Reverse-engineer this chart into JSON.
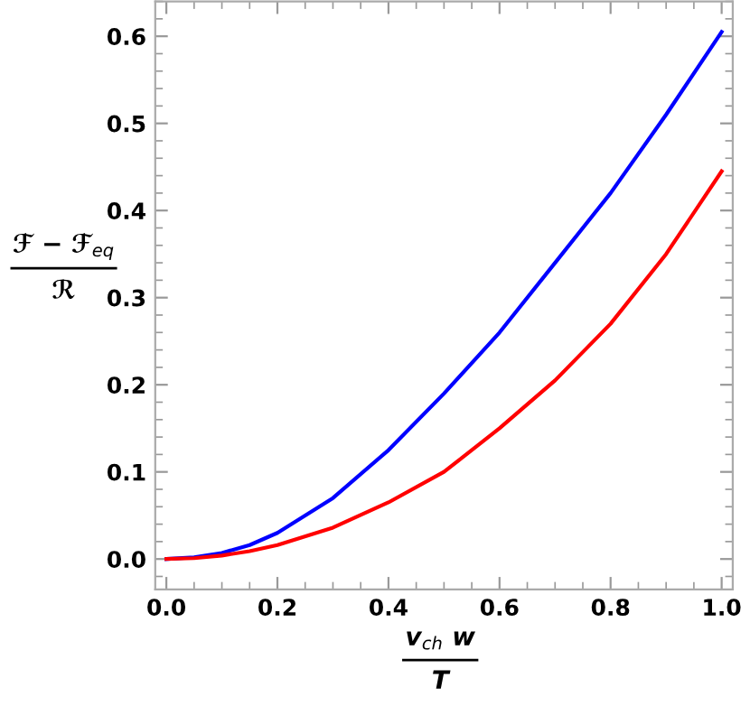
{
  "chart_data": {
    "type": "line",
    "xlabel": "v$_{ch}$ w\nT",
    "ylabel": "ℱ − ℱ$_{eq}$\nℛ",
    "x": [
      0,
      0.05,
      0.1,
      0.15,
      0.2,
      0.3,
      0.4,
      0.5,
      0.6,
      0.7,
      0.8,
      0.9,
      1.0
    ],
    "series": [
      {
        "color": "#0000ff",
        "values": [
          0,
          0.002,
          0.007,
          0.016,
          0.03,
          0.07,
          0.125,
          0.19,
          0.26,
          0.34,
          0.42,
          0.51,
          0.605
        ]
      },
      {
        "color": "#ff0000",
        "values": [
          0,
          0.001,
          0.004,
          0.009,
          0.016,
          0.036,
          0.065,
          0.1,
          0.15,
          0.205,
          0.27,
          0.35,
          0.445
        ]
      }
    ],
    "xlim": [
      -0.02,
      1.02
    ],
    "ylim": [
      -0.035,
      0.64
    ],
    "xticks": [
      {
        "value": 0,
        "label": "0.0"
      },
      {
        "value": 0.2,
        "label": "0.2"
      },
      {
        "value": 0.4,
        "label": "0.4"
      },
      {
        "value": 0.6,
        "label": "0.6"
      },
      {
        "value": 0.8,
        "label": "0.8"
      },
      {
        "value": 1.0,
        "label": "1.0"
      }
    ],
    "yticks": [
      {
        "value": 0,
        "label": "0.0"
      },
      {
        "value": 0.1,
        "label": "0.1"
      },
      {
        "value": 0.2,
        "label": "0.2"
      },
      {
        "value": 0.3,
        "label": "0.3"
      },
      {
        "value": 0.4,
        "label": "0.4"
      },
      {
        "value": 0.5,
        "label": "0.5"
      },
      {
        "value": 0.6,
        "label": "0.6"
      }
    ],
    "grid": false,
    "legend": false,
    "marker": "none",
    "line_style": "solid"
  }
}
